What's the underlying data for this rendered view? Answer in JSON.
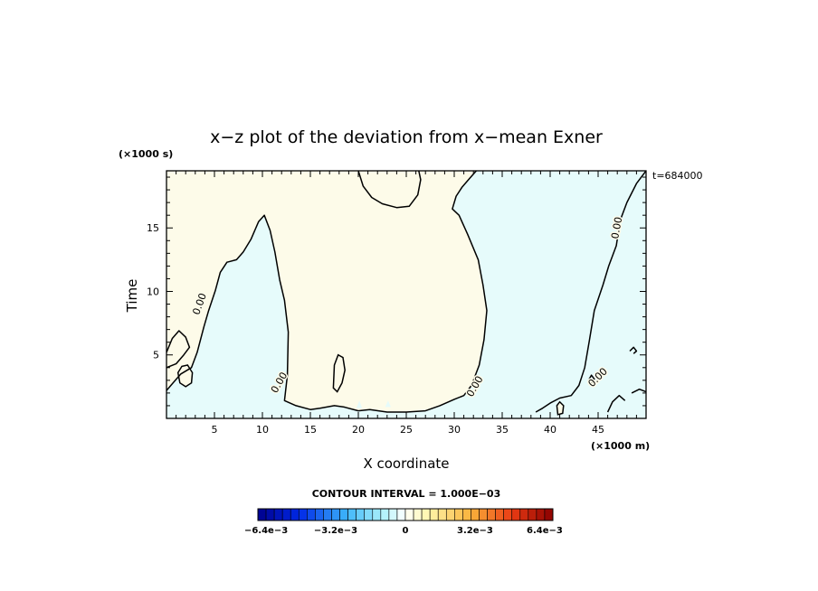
{
  "chart_data": {
    "type": "contour",
    "title": "x−z plot of the deviation from x−mean Exner",
    "xlabel": "X coordinate",
    "ylabel": "Time",
    "x_unit": "(×1000 m)",
    "y_unit": "(×1000 s)",
    "time_label": "t=684000",
    "xlim": [
      0,
      50
    ],
    "ylim": [
      0,
      19.5
    ],
    "x_ticks": [
      5,
      10,
      15,
      20,
      25,
      30,
      35,
      40,
      45
    ],
    "y_ticks": [
      5,
      10,
      15
    ],
    "contour_level_label": "0.00",
    "contour_interval": "CONTOUR INTERVAL = 1.000E−03",
    "colorbar_tick_labels": [
      "−6.4e−3",
      "−3.2e−3",
      "0",
      "3.2e−3",
      "6.4e−3"
    ],
    "colorbar_range": [
      -0.0064,
      0.0064
    ],
    "colorbar_steps": 36,
    "positive_fill": "#fdfbe9",
    "negative_fill": "#e6fbfb",
    "negative_regions": [
      [
        [
          0,
          2.2
        ],
        [
          0.8,
          2.9
        ],
        [
          1.5,
          3.5
        ],
        [
          2.6,
          4.0
        ],
        [
          3.2,
          5.2
        ],
        [
          3.9,
          7.2
        ],
        [
          4.4,
          8.5
        ],
        [
          5.1,
          10.1
        ],
        [
          5.6,
          11.5
        ],
        [
          6.3,
          12.3
        ],
        [
          7.3,
          12.5
        ],
        [
          8.0,
          13.1
        ],
        [
          8.8,
          14.1
        ],
        [
          9.6,
          15.5
        ],
        [
          10.2,
          16.0
        ],
        [
          10.8,
          14.8
        ],
        [
          11.3,
          13.1
        ],
        [
          11.8,
          10.9
        ],
        [
          12.3,
          9.3
        ],
        [
          12.7,
          6.8
        ],
        [
          12.6,
          3.4
        ],
        [
          12.3,
          1.4
        ],
        [
          13.5,
          1.0
        ],
        [
          15.0,
          0.7
        ],
        [
          16.0,
          0.8
        ],
        [
          17.5,
          1.0
        ],
        [
          18.5,
          0.9
        ],
        [
          20.0,
          0.6
        ],
        [
          21.2,
          0.7
        ],
        [
          23.0,
          0.5
        ],
        [
          25.0,
          0.5
        ],
        [
          27.0,
          0.6
        ],
        [
          28.5,
          1.0
        ],
        [
          30.0,
          1.5
        ],
        [
          31.0,
          1.8
        ],
        [
          31.8,
          2.6
        ],
        [
          32.6,
          4.2
        ],
        [
          33.1,
          6.2
        ],
        [
          33.4,
          8.5
        ],
        [
          33.0,
          10.5
        ],
        [
          32.5,
          12.5
        ],
        [
          31.4,
          14.5
        ],
        [
          30.5,
          16.0
        ],
        [
          29.8,
          16.5
        ],
        [
          30.2,
          17.5
        ],
        [
          30.8,
          18.2
        ],
        [
          31.6,
          18.9
        ],
        [
          32.3,
          19.5
        ],
        [
          50,
          19.5
        ],
        [
          50,
          0
        ],
        [
          0,
          0
        ]
      ],
      [
        [
          22.8,
          0.9
        ],
        [
          23.1,
          1.4
        ],
        [
          23.4,
          0.9
        ]
      ],
      [
        [
          19.8,
          0.8
        ],
        [
          20.1,
          1.4
        ],
        [
          20.4,
          0.8
        ]
      ]
    ],
    "positive_islands": [
      [
        [
          1.2,
          3.6
        ],
        [
          1.4,
          2.8
        ],
        [
          2.0,
          2.5
        ],
        [
          2.6,
          2.8
        ],
        [
          2.7,
          3.6
        ],
        [
          2.2,
          4.2
        ],
        [
          1.6,
          4.1
        ]
      ],
      [
        [
          17.4,
          2.4
        ],
        [
          17.8,
          2.1
        ],
        [
          18.3,
          2.8
        ],
        [
          18.6,
          3.8
        ],
        [
          18.4,
          4.8
        ],
        [
          17.9,
          5.0
        ],
        [
          17.5,
          4.2
        ]
      ],
      [
        [
          40.8,
          0.3
        ],
        [
          41.3,
          0.4
        ],
        [
          41.4,
          1.0
        ],
        [
          41.0,
          1.3
        ],
        [
          40.7,
          1.0
        ]
      ]
    ],
    "contour_lines": [
      [
        [
          0,
          2.2
        ],
        [
          0.8,
          2.9
        ],
        [
          1.5,
          3.5
        ],
        [
          2.6,
          4.0
        ],
        [
          3.2,
          5.2
        ],
        [
          3.9,
          7.2
        ],
        [
          4.4,
          8.5
        ],
        [
          5.1,
          10.1
        ],
        [
          5.6,
          11.5
        ],
        [
          6.3,
          12.3
        ],
        [
          7.3,
          12.5
        ],
        [
          8.0,
          13.1
        ],
        [
          8.8,
          14.1
        ],
        [
          9.6,
          15.5
        ],
        [
          10.2,
          16.0
        ],
        [
          10.8,
          14.8
        ],
        [
          11.3,
          13.1
        ],
        [
          11.8,
          10.9
        ],
        [
          12.3,
          9.3
        ],
        [
          12.7,
          6.8
        ],
        [
          12.6,
          3.4
        ],
        [
          12.3,
          1.4
        ],
        [
          13.5,
          1.0
        ],
        [
          15.0,
          0.7
        ],
        [
          16.0,
          0.8
        ],
        [
          17.5,
          1.0
        ],
        [
          18.5,
          0.9
        ],
        [
          20.0,
          0.6
        ],
        [
          21.2,
          0.7
        ],
        [
          23.0,
          0.5
        ],
        [
          25.0,
          0.5
        ],
        [
          27.0,
          0.6
        ],
        [
          28.5,
          1.0
        ],
        [
          30.0,
          1.5
        ],
        [
          31.0,
          1.8
        ],
        [
          31.8,
          2.6
        ],
        [
          32.6,
          4.2
        ],
        [
          33.1,
          6.2
        ],
        [
          33.4,
          8.5
        ],
        [
          33.0,
          10.5
        ],
        [
          32.5,
          12.5
        ],
        [
          31.4,
          14.5
        ],
        [
          30.5,
          16.0
        ],
        [
          29.8,
          16.5
        ],
        [
          30.2,
          17.5
        ],
        [
          30.8,
          18.2
        ],
        [
          31.6,
          18.9
        ],
        [
          32.3,
          19.5
        ]
      ],
      [
        [
          0,
          5.2
        ],
        [
          0.6,
          6.3
        ],
        [
          1.3,
          6.9
        ],
        [
          2.0,
          6.4
        ],
        [
          2.4,
          5.6
        ],
        [
          1.8,
          5.0
        ],
        [
          1.0,
          4.3
        ],
        [
          0,
          4.0
        ]
      ],
      [
        [
          20.0,
          19.5
        ],
        [
          20.5,
          18.3
        ],
        [
          21.4,
          17.4
        ],
        [
          22.5,
          16.9
        ],
        [
          24.0,
          16.6
        ],
        [
          25.3,
          16.7
        ],
        [
          26.2,
          17.6
        ],
        [
          26.5,
          18.8
        ],
        [
          26.3,
          19.5
        ]
      ],
      [
        [
          50,
          19.5
        ],
        [
          49.0,
          18.5
        ],
        [
          48.0,
          17.0
        ],
        [
          47.3,
          15.6
        ],
        [
          46.9,
          13.6
        ],
        [
          46.1,
          12.0
        ],
        [
          45.5,
          10.5
        ],
        [
          44.6,
          8.5
        ],
        [
          44.1,
          6.2
        ],
        [
          43.6,
          4.0
        ],
        [
          43.0,
          2.6
        ],
        [
          42.2,
          1.8
        ],
        [
          41.0,
          1.6
        ],
        [
          40.0,
          1.2
        ],
        [
          39.2,
          0.8
        ],
        [
          38.5,
          0.5
        ]
      ],
      [
        [
          48.5,
          2.0
        ],
        [
          49.3,
          2.3
        ],
        [
          50,
          2.1
        ]
      ],
      [
        [
          46.0,
          0.5
        ],
        [
          46.5,
          1.3
        ],
        [
          47.2,
          1.8
        ],
        [
          47.8,
          1.4
        ]
      ],
      [
        [
          48.3,
          5.3
        ],
        [
          48.7,
          5.6
        ],
        [
          49.0,
          5.3
        ],
        [
          48.7,
          5.1
        ]
      ],
      [
        [
          44.0,
          3.0
        ],
        [
          44.3,
          3.4
        ],
        [
          44.6,
          3.1
        ],
        [
          44.3,
          2.8
        ]
      ]
    ],
    "contour_labels": [
      {
        "text": "0.00",
        "x": 3.5,
        "y": 9.0,
        "angle": -70
      },
      {
        "text": "0.00",
        "x": 11.8,
        "y": 2.8,
        "angle": -60
      },
      {
        "text": "0.00",
        "x": 32.2,
        "y": 2.5,
        "angle": -60
      },
      {
        "text": "0.00",
        "x": 45.0,
        "y": 3.2,
        "angle": -45
      },
      {
        "text": "0.00",
        "x": 47.0,
        "y": 15.0,
        "angle": -80
      }
    ]
  }
}
